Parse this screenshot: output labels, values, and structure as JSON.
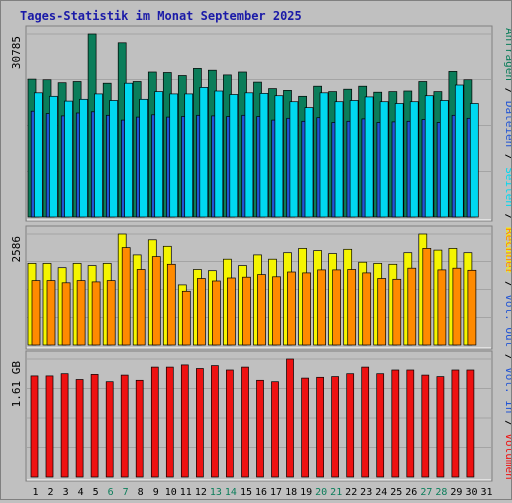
{
  "chart_data": {
    "type": "bar",
    "title": "Tages-Statistik im Monat September 2025",
    "colors": {
      "anfragen": "#0b7d5a",
      "dateien": "#2255d4",
      "seiten": "#00d8f0",
      "besuche": "#f5f500",
      "rechner": "#ff8a00",
      "volumen": "#ee1111",
      "title": "#1a1aa8",
      "weekend_label": "#0b7d5a",
      "weekday_label": "#000000",
      "panel": "#c0c0c0",
      "grid": "#888888"
    },
    "categories": [
      "1",
      "2",
      "3",
      "4",
      "5",
      "6",
      "7",
      "8",
      "9",
      "10",
      "11",
      "12",
      "13",
      "14",
      "15",
      "16",
      "17",
      "18",
      "19",
      "20",
      "21",
      "22",
      "23",
      "24",
      "25",
      "26",
      "27",
      "28",
      "29",
      "30",
      "31"
    ],
    "weekend_days": [
      "6",
      "7",
      "13",
      "14",
      "20",
      "21",
      "27",
      "28"
    ],
    "panels": [
      {
        "id": "requests",
        "ymax_label": "30785",
        "ymax": 30785,
        "right_label": [
          {
            "text": "Anfragen",
            "color_key": "anfragen"
          },
          {
            "text": " / ",
            "color_key": "weekday_label"
          },
          {
            "text": "Dateien",
            "color_key": "dateien"
          },
          {
            "text": " / ",
            "color_key": "weekday_label"
          },
          {
            "text": "Seiten",
            "color_key": "seiten"
          },
          {
            "text": " / ",
            "color_key": "weekday_label"
          },
          {
            "text": "Besuche",
            "color_key": "besuche"
          }
        ],
        "series": [
          {
            "name": "Anfragen",
            "color_key": "anfragen",
            "values": [
              23200,
              23100,
              22600,
              22800,
              30785,
              22500,
              29300,
              22800,
              24400,
              24300,
              23800,
              25000,
              24700,
              23900,
              24400,
              22700,
              21600,
              21300,
              20300,
              22000,
              21100,
              21500,
              22000,
              21000,
              21100,
              21200,
              22800,
              21100,
              24500,
              23100
            ]
          },
          {
            "name": "Dateien",
            "color_key": "dateien",
            "values": [
              17800,
              17400,
              17000,
              17500,
              17700,
              17100,
              16300,
              16800,
              17200,
              16800,
              16900,
              17100,
              17000,
              16900,
              17100,
              16900,
              16300,
              16600,
              16100,
              16700,
              15900,
              16100,
              16500,
              15900,
              16000,
              16100,
              16400,
              15900,
              17100,
              16600
            ]
          },
          {
            "name": "Seiten",
            "color_key": "seiten",
            "values": [
              20900,
              20300,
              19500,
              19800,
              20700,
              19600,
              22500,
              19800,
              21100,
              20700,
              20700,
              21800,
              21200,
              20600,
              20900,
              20800,
              20400,
              19400,
              18400,
              20900,
              19400,
              19600,
              20200,
              19400,
              19100,
              19400,
              20400,
              19600,
              22200,
              19100
            ]
          }
        ]
      },
      {
        "id": "visits",
        "ymax_label": "2586",
        "ymax": 2586,
        "right_label": [
          {
            "text": "Rechner",
            "color_key": "rechner"
          },
          {
            "text": " / ",
            "color_key": "weekday_label"
          },
          {
            "text": "Vol. Out",
            "color_key": "dateien"
          },
          {
            "text": " / ",
            "color_key": "weekday_label"
          },
          {
            "text": "Vol. In",
            "color_key": "dateien"
          },
          {
            "text": " / ",
            "color_key": "weekday_label"
          },
          {
            "text": "Volumen",
            "color_key": "volumen"
          }
        ],
        "series": [
          {
            "name": "Besuche",
            "color_key": "besuche",
            "values": [
              1900,
              1900,
              1800,
              1900,
              1850,
              1900,
              2586,
              2100,
              2450,
              2300,
              1400,
              1760,
              1730,
              2000,
              1850,
              2100,
              2000,
              2150,
              2250,
              2200,
              2130,
              2230,
              1930,
              1900,
              1880,
              2150,
              2586,
              2210,
              2250,
              2150
            ]
          },
          {
            "name": "Rechner",
            "color_key": "rechner",
            "values": [
              1500,
              1500,
              1450,
              1500,
              1470,
              1500,
              2270,
              1760,
              2060,
              1880,
              1250,
              1550,
              1490,
              1560,
              1580,
              1640,
              1590,
              1700,
              1680,
              1750,
              1750,
              1760,
              1680,
              1550,
              1530,
              1790,
              2250,
              1750,
              1790,
              1740
            ]
          }
        ]
      },
      {
        "id": "volume",
        "ymax_label": "1.61 GB",
        "ymax": 1.61,
        "series": [
          {
            "name": "Volumen",
            "color_key": "volumen",
            "values": [
              1.38,
              1.38,
              1.41,
              1.33,
              1.4,
              1.3,
              1.39,
              1.32,
              1.5,
              1.5,
              1.53,
              1.48,
              1.52,
              1.46,
              1.5,
              1.32,
              1.3,
              1.61,
              1.35,
              1.36,
              1.37,
              1.41,
              1.5,
              1.41,
              1.46,
              1.46,
              1.39,
              1.37,
              1.46,
              1.46
            ]
          }
        ]
      }
    ]
  }
}
